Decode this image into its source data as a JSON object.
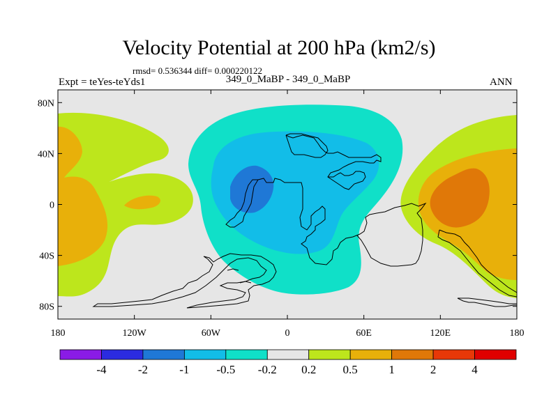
{
  "title": "Velocity Potential at 200 hPa (km2/s)",
  "stats": "rmsd= 0.536344 diff= 0.000220122",
  "expt": "Expt = teYes-teYds1",
  "cases": "349_0_MaBP - 349_0_MaBP",
  "season": "ANN",
  "chart_data": {
    "type": "contour-map",
    "title": "Velocity Potential at 200 hPa (km2/s)",
    "projection": "cylindrical-equidistant",
    "xlim": [
      -180,
      180
    ],
    "ylim": [
      -90,
      90
    ],
    "x_ticks": [
      -180,
      -120,
      -60,
      0,
      60,
      120,
      180
    ],
    "x_tick_labels": [
      "180",
      "120W",
      "60W",
      "0",
      "60E",
      "120E",
      "180"
    ],
    "y_ticks": [
      80,
      40,
      0,
      -40,
      -80
    ],
    "y_tick_labels": [
      "80N",
      "40N",
      "0",
      "40S",
      "80S"
    ],
    "contour_levels": [
      -4,
      -2,
      -1,
      -0.5,
      -0.2,
      0.2,
      0.5,
      1,
      2,
      4
    ],
    "colorbar_labels": [
      "-4",
      "-2",
      "-1",
      "-0.5",
      "-0.2",
      "0.2",
      "0.5",
      "1",
      "2",
      "4"
    ],
    "colorbar_colors": [
      "#8a1be6",
      "#2b2be0",
      "#1f78d6",
      "#12bde8",
      "#10e0c8",
      "#e6e6e6",
      "#bde61c",
      "#e8b00a",
      "#e07808",
      "#e83808",
      "#e00000"
    ],
    "colors": {
      "neutral": "#e6e6e6",
      "neg_weak": "#10e0c8",
      "neg_mid": "#12bde8",
      "neg_strong": "#1f78d6",
      "pos_weak": "#bde61c",
      "pos_mid": "#e8b00a",
      "pos_strong": "#e07808"
    },
    "regions": [
      {
        "name": "negative-center-atlantic",
        "min_level": -1,
        "center": [
          -40,
          10
        ]
      },
      {
        "name": "positive-center-west-pacific",
        "min_level": 1,
        "center": [
          140,
          5
        ]
      },
      {
        "name": "positive-east-pacific",
        "min_level": 0.5,
        "center": [
          -170,
          0
        ]
      }
    ]
  }
}
